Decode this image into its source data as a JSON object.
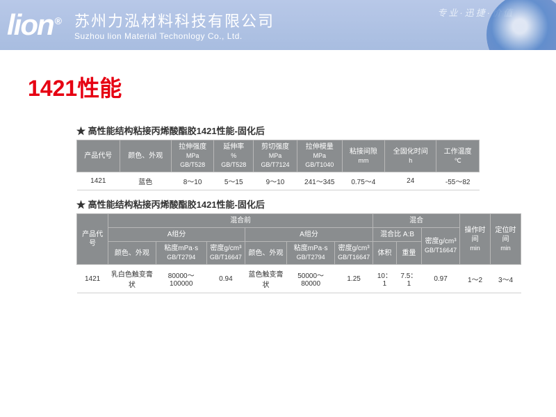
{
  "header": {
    "logo": "lion",
    "reg": "®",
    "company_cn": "苏州力泓材料科技有限公司",
    "company_en": "Suzhou lion Material Techonlogy Co., Ltd.",
    "script": "专业·迅捷·价值"
  },
  "title": "1421性能",
  "section1": {
    "title": "高性能结构粘接丙烯酸酯胶1421性能-固化后",
    "headers": {
      "h1": "产品代号",
      "h2": "颜色、外观",
      "h3a": "拉伸强度",
      "h3b": "MPa",
      "h3c": "GB/T528",
      "h4a": "延伸率",
      "h4b": "%",
      "h4c": "GB/T528",
      "h5a": "剪切强度",
      "h5b": "MPa",
      "h5c": "GB/T7124",
      "h6a": "拉伸模量",
      "h6b": "MPa",
      "h6c": "GB/T1040",
      "h7a": "粘接间隙",
      "h7b": "mm",
      "h8a": "全固化时间",
      "h8b": "h",
      "h9a": "工作温度",
      "h9b": "℃"
    },
    "row": {
      "c1": "1421",
      "c2": "蓝色",
      "c3": "8～10",
      "c4": "5～15",
      "c5": "9～10",
      "c6": "241～345",
      "c7": "0.75～4",
      "c8": "24",
      "c9": "-55～82"
    }
  },
  "section2": {
    "title": "高性能结构粘接丙烯酸酯胶1421性能-固化后",
    "headers": {
      "g1": "混合前",
      "g2": "混合",
      "r1": "产品代号",
      "a_part": "A组分",
      "b_part": "A组分",
      "col_appear": "颜色、外观",
      "col_visc_a": "粘度mPa·s",
      "col_visc_b": "GB/T2794",
      "col_dens_a": "密度g/cm³",
      "col_dens_b": "GB/T16647",
      "ratio": "混合比 A:B",
      "ratio_v": "体积",
      "ratio_w": "重量",
      "mix_dens_a": "密度g/cm³",
      "mix_dens_b": "GB/T16647",
      "work_a": "操作时间",
      "work_b": "min",
      "fix_a": "定位时间",
      "fix_b": "min"
    },
    "row": {
      "c1": "1421",
      "c2": "乳白色触变膏状",
      "c3": "80000～100000",
      "c4": "0.94",
      "c5": "蓝色触变膏状",
      "c6": "50000～80000",
      "c7": "1.25",
      "c8": "10：1",
      "c9": "7.5：1",
      "c10": "0.97",
      "c11": "1～2",
      "c12": "3～4"
    }
  }
}
